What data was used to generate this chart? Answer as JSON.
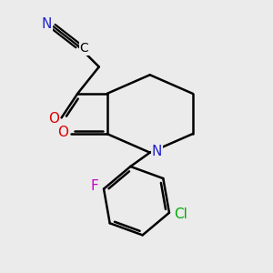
{
  "background_color": "#ebebeb",
  "bond_color": "#000000",
  "bond_width": 1.8,
  "atom_colors": {
    "N": "#2222cc",
    "O": "#dd0000",
    "Cl": "#00aa00",
    "F": "#cc00cc",
    "C": "#000000"
  },
  "font_size": 10,
  "figsize": [
    3.0,
    3.0
  ],
  "dpi": 100
}
